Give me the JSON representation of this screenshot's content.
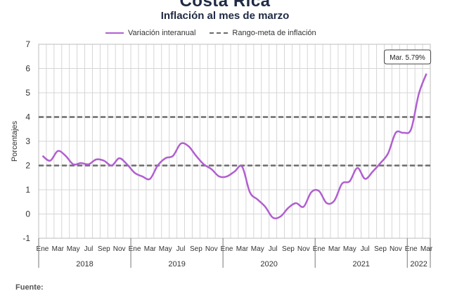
{
  "header": {
    "title": "Costa Rica",
    "subtitle": "Inflación al mes de marzo"
  },
  "footer": {
    "source_label": "Fuente:"
  },
  "chart_data": {
    "type": "line",
    "title": "Inflación al mes de marzo",
    "ylabel": "Porcentajes",
    "xlabel": "",
    "ylim": [
      -1,
      7
    ],
    "yticks": [
      -1,
      0,
      1,
      2,
      3,
      4,
      5,
      6,
      7
    ],
    "grid": true,
    "legend_position": "top",
    "x_month_labels": [
      "Ene",
      "Mar",
      "May",
      "Jul",
      "Sep",
      "Nov",
      "Ene",
      "Mar",
      "May",
      "Jul",
      "Sep",
      "Nov",
      "Ene",
      "Mar",
      "May",
      "Jul",
      "Sep",
      "Nov",
      "Ene",
      "Mar",
      "May",
      "Jul",
      "Sep",
      "Nov",
      "Ene",
      "Mar"
    ],
    "x_year_labels": [
      "2018",
      "2019",
      "2020",
      "2021",
      "2022"
    ],
    "x": [
      "2018-01",
      "2018-02",
      "2018-03",
      "2018-04",
      "2018-05",
      "2018-06",
      "2018-07",
      "2018-08",
      "2018-09",
      "2018-10",
      "2018-11",
      "2018-12",
      "2019-01",
      "2019-02",
      "2019-03",
      "2019-04",
      "2019-05",
      "2019-06",
      "2019-07",
      "2019-08",
      "2019-09",
      "2019-10",
      "2019-11",
      "2019-12",
      "2020-01",
      "2020-02",
      "2020-03",
      "2020-04",
      "2020-05",
      "2020-06",
      "2020-07",
      "2020-08",
      "2020-09",
      "2020-10",
      "2020-11",
      "2020-12",
      "2021-01",
      "2021-02",
      "2021-03",
      "2021-04",
      "2021-05",
      "2021-06",
      "2021-07",
      "2021-08",
      "2021-09",
      "2021-10",
      "2021-11",
      "2021-12",
      "2022-01",
      "2022-02",
      "2022-03"
    ],
    "series": [
      {
        "name": "Variación interanual",
        "color": "#b15fd0",
        "style": "solid",
        "values": [
          2.4,
          2.2,
          2.6,
          2.4,
          2.05,
          2.1,
          2.05,
          2.25,
          2.2,
          2.0,
          2.3,
          2.05,
          1.7,
          1.55,
          1.45,
          2.0,
          2.3,
          2.4,
          2.9,
          2.8,
          2.4,
          2.05,
          1.85,
          1.55,
          1.55,
          1.75,
          1.95,
          0.9,
          0.6,
          0.3,
          -0.15,
          -0.1,
          0.25,
          0.45,
          0.3,
          0.9,
          0.95,
          0.45,
          0.55,
          1.25,
          1.35,
          1.9,
          1.45,
          1.75,
          2.1,
          2.5,
          3.35,
          3.35,
          3.5,
          4.95,
          5.79
        ]
      },
      {
        "name": "Rango-meta de inflación",
        "color": "#6b6b6b",
        "style": "dashed",
        "bounds": [
          2,
          4
        ]
      }
    ],
    "annotations": [
      {
        "text": "Mar. 5.79%",
        "x": "2022-03",
        "y": 5.79
      }
    ]
  }
}
